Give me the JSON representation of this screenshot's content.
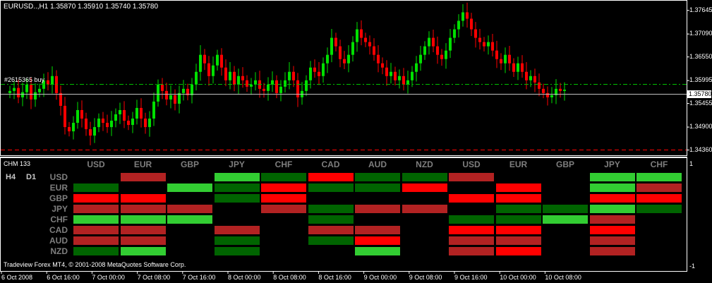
{
  "chart": {
    "title": "EURUSD..,H1  1.35870 1.35910 1.35740 1.35780",
    "price_labels": [
      "1.37645",
      "1.37090",
      "1.36550",
      "1.35995",
      "1.35455",
      "1.34900",
      "1.34360"
    ],
    "current_price": "1.35780",
    "order_label": "#2615365 buy",
    "bull_color": "#00e000",
    "bear_color": "#ff0000",
    "order_line_color": "#00c000",
    "stop_line_color": "#ff0000"
  },
  "chart_data": {
    "type": "candlestick",
    "title": "EURUSD..,H1  1.35870 1.35910 1.35740 1.35780",
    "ylim": [
      1.3427,
      1.3784
    ],
    "y_ticks": [
      1.37645,
      1.3709,
      1.3655,
      1.35995,
      1.35455,
      1.349,
      1.3436
    ],
    "x_tick_labels": [
      "6 Oct 2008",
      "6 Oct 16:00",
      "7 Oct 00:00",
      "7 Oct 08:00",
      "7 Oct 16:00",
      "8 Oct 00:00",
      "8 Oct 08:00",
      "8 Oct 16:00",
      "9 Oct 00:00",
      "9 Oct 08:00",
      "9 Oct 16:00",
      "10 Oct 00:00",
      "10 Oct 08:00"
    ],
    "closes": [
      1.3575,
      1.3582,
      1.356,
      1.3572,
      1.359,
      1.3555,
      1.3572,
      1.358,
      1.36,
      1.359,
      1.361,
      1.357,
      1.354,
      1.349,
      1.348,
      1.35,
      1.353,
      1.351,
      1.3485,
      1.347,
      1.349,
      1.351,
      1.35,
      1.349,
      1.3505,
      1.352,
      1.353,
      1.3505,
      1.3495,
      1.351,
      1.3535,
      1.351,
      1.349,
      1.351,
      1.355,
      1.359,
      1.3575,
      1.3555,
      1.3565,
      1.3545,
      1.357,
      1.358,
      1.3565,
      1.359,
      1.362,
      1.366,
      1.364,
      1.361,
      1.3635,
      1.366,
      1.363,
      1.36,
      1.362,
      1.359,
      1.361,
      1.36,
      1.3585,
      1.359,
      1.36,
      1.358,
      1.3575,
      1.359,
      1.36,
      1.357,
      1.3585,
      1.36,
      1.362,
      1.36,
      1.356,
      1.3575,
      1.36,
      1.363,
      1.362,
      1.361,
      1.364,
      1.366,
      1.37,
      1.368,
      1.365,
      1.364,
      1.366,
      1.369,
      1.372,
      1.37,
      1.369,
      1.368,
      1.366,
      1.364,
      1.363,
      1.361,
      1.362,
      1.36,
      1.361,
      1.359,
      1.36,
      1.362,
      1.364,
      1.366,
      1.368,
      1.37,
      1.368,
      1.366,
      1.365,
      1.367,
      1.37,
      1.372,
      1.374,
      1.376,
      1.3745,
      1.372,
      1.37,
      1.369,
      1.368,
      1.369,
      1.367,
      1.365,
      1.364,
      1.366,
      1.364,
      1.362,
      1.364,
      1.362,
      1.36,
      1.361,
      1.3595,
      1.358,
      1.357,
      1.356,
      1.3565,
      1.358,
      1.3575,
      1.3578
    ]
  },
  "indicator": {
    "title": "CHM 133",
    "scale_top": "1",
    "scale_bottom": "-1",
    "tf_labels": [
      "H4",
      "D1"
    ],
    "column_headers": [
      "USD",
      "EUR",
      "GBP",
      "JPY",
      "CHF",
      "CAD",
      "AUD",
      "NZD",
      "USD",
      "EUR",
      "GBP",
      "JPY",
      "CHF"
    ],
    "row_labels": [
      "USD",
      "EUR",
      "GBP",
      "JPY",
      "CHF",
      "CAD",
      "AUD",
      "NZD"
    ],
    "palette": {
      "S": "#006400",
      "G": "#32cd32",
      "R": "#ff0000",
      "D": "#b22222",
      "-": ""
    },
    "grid": [
      "-D GSRSSD -GGDG",
      "S-GSRSSR R-GDR",
      "RR-SR---RR-RR",
      "DDD-DSDD SSGSS",
      "GGG--S--SSGD-",
      "DD-D-DD-RR-R-",
      "DD-S-SR-DD-D-",
      "SG-S--G-DR-D-"
    ]
  },
  "footer": {
    "copyright": "Tradeview Forex MT4, © 2001-2008 MetaQuotes Software Corp."
  }
}
